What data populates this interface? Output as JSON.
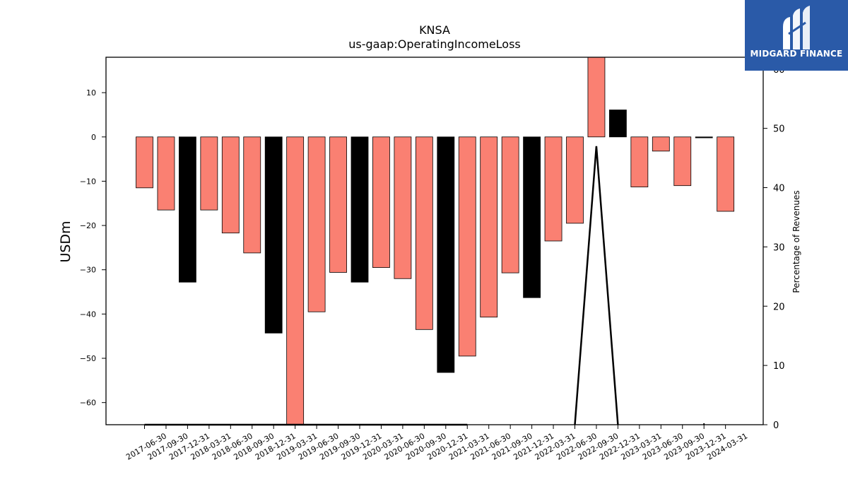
{
  "chart_data": {
    "type": "bar",
    "title": "KNSA",
    "subtitle": "us-gaap:OperatingIncomeLoss",
    "ylabel": "USDm",
    "y2label": "Percentage of Revenues",
    "ylim": [
      -65,
      18
    ],
    "y2lim": [
      0,
      62
    ],
    "yticks": [
      10,
      0,
      -10,
      -20,
      -30,
      -40,
      -50,
      -60
    ],
    "y2ticks": [
      0,
      10,
      20,
      30,
      40,
      50,
      60
    ],
    "categories": [
      "2017-06-30",
      "2017-09-30",
      "2017-12-31",
      "2018-03-31",
      "2018-06-30",
      "2018-09-30",
      "2018-12-31",
      "2019-03-31",
      "2019-06-30",
      "2019-09-30",
      "2019-12-31",
      "2020-03-31",
      "2020-06-30",
      "2020-09-30",
      "2020-12-31",
      "2021-03-31",
      "2021-06-30",
      "2021-09-30",
      "2021-12-31",
      "2022-03-31",
      "2022-06-30",
      "2022-09-30",
      "2022-12-31",
      "2023-03-31",
      "2023-06-30",
      "2023-09-30",
      "2023-12-31",
      "2024-03-31"
    ],
    "values": [
      -11.5,
      -16.5,
      -32.8,
      -16.5,
      -21.7,
      -26.2,
      -44.3,
      -65,
      -39.5,
      -30.6,
      -32.8,
      -29.5,
      -32.0,
      -43.5,
      -53.2,
      -49.5,
      -40.7,
      -30.7,
      -36.3,
      -23.5,
      -19.5,
      18,
      6.1,
      -11.3,
      -3.2,
      -11.0,
      -0.2,
      -16.8
    ],
    "bar_colors": [
      "#fa8072",
      "#fa8072",
      "#000000",
      "#fa8072",
      "#fa8072",
      "#fa8072",
      "#000000",
      "#fa8072",
      "#fa8072",
      "#fa8072",
      "#000000",
      "#fa8072",
      "#fa8072",
      "#fa8072",
      "#000000",
      "#fa8072",
      "#fa8072",
      "#fa8072",
      "#000000",
      "#fa8072",
      "#fa8072",
      "#fa8072",
      "#000000",
      "#fa8072",
      "#fa8072",
      "#fa8072",
      "#000000",
      "#fa8072"
    ],
    "line_series": {
      "name": "",
      "x": [
        "2017-06-30",
        "2017-09-30",
        "2017-12-31",
        "2018-03-31",
        "2018-06-30",
        "2018-09-30",
        "2018-12-31",
        "2019-03-31",
        "2019-06-30",
        "2019-09-30",
        "2019-12-31",
        "2020-03-31",
        "2020-06-30",
        "2020-09-30",
        "2020-12-31",
        "2021-03-31",
        "2021-06-30",
        "2021-09-30",
        "2021-12-31",
        "2022-03-31",
        "2022-06-30",
        "2022-09-30",
        "2022-12-31",
        "2023-03-31",
        "2023-06-30",
        "2023-09-30",
        "2023-12-31"
      ],
      "values": [
        0,
        0,
        0,
        0,
        0,
        0,
        0,
        0,
        0,
        0,
        0,
        0,
        0,
        0,
        0,
        0,
        null,
        null,
        null,
        null,
        0,
        47,
        0,
        null,
        null,
        null,
        0.1
      ]
    },
    "legend": "none",
    "grid": false
  },
  "logo": {
    "text": "MIDGARD FINANCE"
  }
}
